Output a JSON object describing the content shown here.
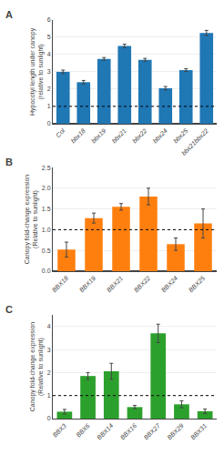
{
  "chart_data": [
    {
      "type": "bar",
      "title": "A",
      "categories": [
        "Col",
        "bbx18",
        "bbx19",
        "bbx21",
        "bbx22",
        "bbx24",
        "bbx25",
        "bbx21bbx22"
      ],
      "values": [
        3.0,
        2.4,
        3.75,
        4.5,
        3.7,
        2.05,
        3.1,
        5.25
      ],
      "errors": [
        0.1,
        0.1,
        0.08,
        0.1,
        0.08,
        0.1,
        0.08,
        0.15
      ],
      "ylabel": "Hypocotyl length under canopy\n(relative to sunlight)",
      "ylim": [
        0,
        6
      ],
      "yticks": [
        0,
        1,
        2,
        3,
        4,
        5,
        6
      ],
      "hline": 1.0,
      "line_style": "dotted"
    },
    {
      "type": "bar",
      "title": "B",
      "categories": [
        "BBX18",
        "BBX19",
        "BBX21",
        "BBX22",
        "BBX24",
        "BBX25"
      ],
      "values": [
        0.52,
        1.28,
        1.55,
        1.8,
        0.65,
        1.15
      ],
      "errors": [
        0.18,
        0.12,
        0.08,
        0.2,
        0.15,
        0.35
      ],
      "ylabel": "Canopy fold-change expression\n(Relative to sunlight)",
      "ylim": [
        0,
        2.5
      ],
      "yticks": [
        {
          "value": 0,
          "label": "0.0"
        },
        0.5,
        {
          "value": 1,
          "label": "1.0"
        },
        1.5,
        {
          "value": 2,
          "label": "2.0"
        },
        2.5
      ],
      "hline": 1.0,
      "line_style": "dotted"
    },
    {
      "type": "bar",
      "title": "C",
      "categories": [
        "BBX3",
        "BBX6",
        "BBX14",
        "BBX16",
        "BBX27",
        "BBX29",
        "BBX31"
      ],
      "values": [
        0.3,
        1.85,
        2.05,
        0.5,
        3.7,
        0.62,
        0.32
      ],
      "errors": [
        0.1,
        0.15,
        0.35,
        0.07,
        0.4,
        0.15,
        0.1
      ],
      "ylabel": "Canopy fold-change expression\n(Relative to sunlight)",
      "ylim": [
        0,
        4.5
      ],
      "yticks": [
        0,
        1,
        2,
        3,
        4
      ],
      "hline": 1.0,
      "line_style": "dotted"
    }
  ]
}
